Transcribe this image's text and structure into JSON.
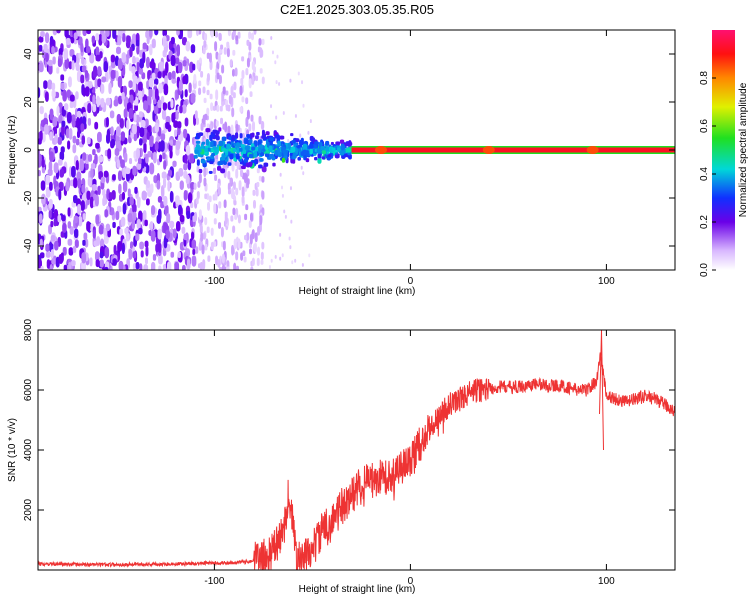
{
  "title": "C2E1.2025.303.05.35.R05",
  "chart_data": [
    {
      "type": "heatmap",
      "xlabel": "Height of straight line (km)",
      "ylabel": "Frequency (Hz)",
      "xlim": [
        -190,
        135
      ],
      "ylim": [
        -50,
        50
      ],
      "xticks": [
        -100,
        0,
        100
      ],
      "xtick_labels": [
        "-100",
        "0",
        "100"
      ],
      "yticks": [
        -40,
        -20,
        0,
        20,
        40
      ],
      "ytick_labels": [
        "-40",
        "-20",
        "0",
        "20",
        "40"
      ],
      "colorbar": {
        "label": "Normalized spectral amplitude",
        "range": [
          0,
          1
        ],
        "ticks": [
          0.0,
          0.2,
          0.4,
          0.6,
          0.8
        ],
        "tick_labels": [
          "0.0",
          "0.2",
          "0.4",
          "0.6",
          "0.8"
        ]
      },
      "regions": [
        {
          "name": "dense-noise",
          "x_from": -190,
          "x_to": -110,
          "amplitude": 0.15
        },
        {
          "name": "faint-noise",
          "x_from": -110,
          "x_to": -75,
          "amplitude": 0.05
        },
        {
          "name": "dispersed-signal",
          "x_from": -110,
          "x_to": -30,
          "f_half_width": 12,
          "amplitude": 0.3
        },
        {
          "name": "carrier-line",
          "x_from": -30,
          "x_to": 135,
          "frequency": 0,
          "amplitude": 0.95
        }
      ]
    },
    {
      "type": "line",
      "xlabel": "Height of straight line (km)",
      "ylabel": "SNR (10 * v/v)",
      "xlim": [
        -190,
        135
      ],
      "ylim": [
        0,
        8000
      ],
      "xticks": [
        -100,
        0,
        100
      ],
      "xtick_labels": [
        "-100",
        "0",
        "100"
      ],
      "yticks": [
        2000,
        4000,
        6000,
        8000
      ],
      "ytick_labels": [
        "2000",
        "4000",
        "6000",
        "8000"
      ],
      "series": [
        {
          "name": "SNR",
          "color": "#ee3333",
          "x": [
            -190,
            -150,
            -120,
            -90,
            -80,
            -72,
            -65,
            -62,
            -60,
            -58,
            -55,
            -50,
            -45,
            -40,
            -35,
            -30,
            -25,
            -20,
            -15,
            -10,
            -5,
            0,
            5,
            10,
            15,
            20,
            25,
            30,
            35,
            40,
            45,
            50,
            55,
            60,
            65,
            70,
            75,
            80,
            85,
            90,
            95,
            97,
            100,
            105,
            110,
            115,
            120,
            125,
            130,
            135
          ],
          "y": [
            200,
            180,
            200,
            250,
            300,
            450,
            1200,
            2600,
            1500,
            400,
            300,
            700,
            1300,
            1600,
            2100,
            2500,
            2900,
            3000,
            3100,
            3100,
            3400,
            3700,
            4200,
            4700,
            5200,
            5500,
            5700,
            5900,
            6000,
            6050,
            6100,
            6100,
            6100,
            6150,
            6200,
            6150,
            6150,
            6100,
            6000,
            6000,
            6300,
            7200,
            5800,
            5700,
            5600,
            5700,
            5800,
            5700,
            5500,
            5300
          ]
        }
      ]
    }
  ]
}
